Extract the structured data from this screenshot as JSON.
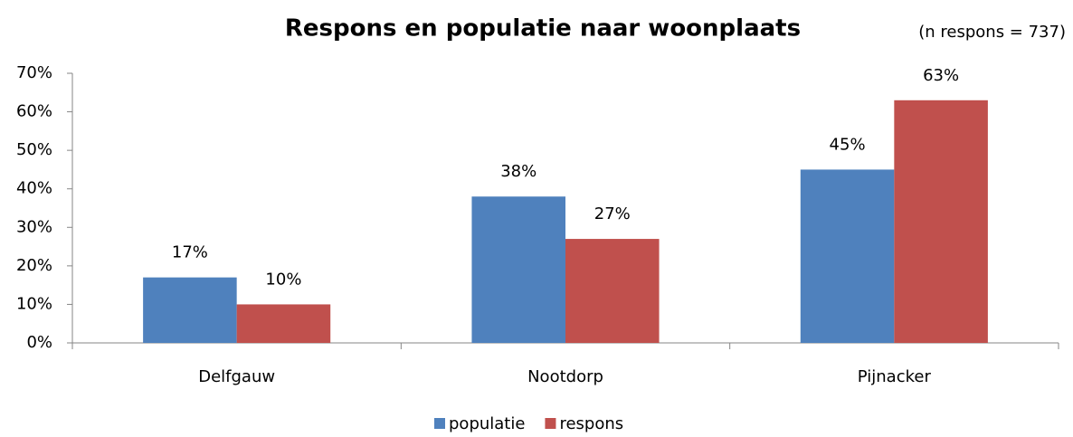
{
  "chart_data": {
    "type": "bar",
    "title": "Respons en populatie naar woonplaats",
    "subtitle": "(n respons = 737)",
    "categories": [
      "Delfgauw",
      "Nootdorp",
      "Pijnacker"
    ],
    "series": [
      {
        "name": "populatie",
        "color": "#4f81bd",
        "values": [
          17,
          38,
          45
        ],
        "value_labels": [
          "17%",
          "38%",
          "45%"
        ]
      },
      {
        "name": "respons",
        "color": "#c0504d",
        "values": [
          10,
          27,
          63
        ],
        "value_labels": [
          "10%",
          "27%",
          "63%"
        ]
      }
    ],
    "ylim": [
      0,
      70
    ],
    "yticks": [
      {
        "value": 0,
        "label": "0%"
      },
      {
        "value": 10,
        "label": "10%"
      },
      {
        "value": 20,
        "label": "20%"
      },
      {
        "value": 30,
        "label": "30%"
      },
      {
        "value": 40,
        "label": "40%"
      },
      {
        "value": 50,
        "label": "50%"
      },
      {
        "value": 60,
        "label": "60%"
      },
      {
        "value": 70,
        "label": "70%"
      }
    ],
    "grid": false,
    "legend": "bottom"
  }
}
